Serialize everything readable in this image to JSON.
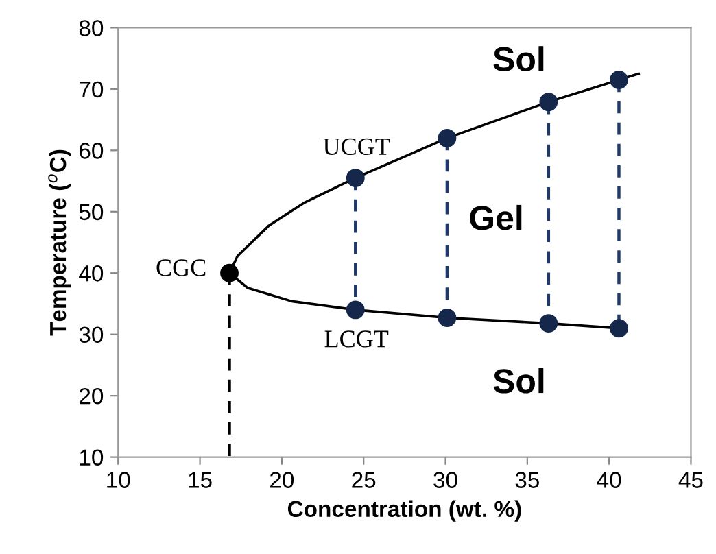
{
  "chart_data": {
    "type": "line",
    "xlabel": "Concentration (wt. %)",
    "ylabel": "Temperature ($^{o}$C)",
    "xlim": [
      10,
      45
    ],
    "xticks": [
      10,
      15,
      20,
      25,
      30,
      35,
      40,
      45
    ],
    "ylim": [
      10,
      80
    ],
    "yticks": [
      10,
      20,
      30,
      40,
      50,
      60,
      70,
      80
    ],
    "grid": false,
    "series": [
      {
        "color": "#000000",
        "marker": "none",
        "line_style": "solid",
        "x": [
          16.8,
          17.3,
          19.2,
          21.4,
          24.5,
          30.1,
          36.3,
          40.6,
          41.8
        ],
        "values": [
          40.0,
          42.8,
          47.7,
          51.5,
          55.5,
          62.0,
          67.9,
          71.5,
          72.5
        ]
      },
      {
        "color": "#000000",
        "marker": "none",
        "line_style": "solid",
        "x": [
          16.8,
          17.9,
          20.6,
          24.5,
          30.1,
          36.3,
          40.6
        ],
        "values": [
          40.0,
          37.6,
          35.4,
          34.0,
          32.7,
          31.8,
          31.0
        ]
      },
      {
        "color": "#000000",
        "marker": "none",
        "line_style": "dashed",
        "x": [
          16.8,
          16.8
        ],
        "values": [
          40.0,
          10
        ]
      },
      {
        "color": "#1f3a68",
        "marker": "none",
        "line_style": "dashed",
        "x": [
          24.5,
          24.5
        ],
        "values": [
          55.5,
          34.0
        ]
      },
      {
        "color": "#1f3a68",
        "marker": "none",
        "line_style": "dashed",
        "x": [
          30.1,
          30.1
        ],
        "values": [
          62.0,
          32.7
        ]
      },
      {
        "color": "#1f3a68",
        "marker": "none",
        "line_style": "dashed",
        "x": [
          36.3,
          36.3
        ],
        "values": [
          67.9,
          31.8
        ]
      },
      {
        "color": "#1f3a68",
        "marker": "none",
        "line_style": "dashed",
        "x": [
          40.6,
          40.6
        ],
        "values": [
          71.5,
          31.0
        ]
      },
      {
        "type": "scatter",
        "color": "#15284b",
        "marker": "circle",
        "x": [
          24.5,
          30.1,
          36.3,
          40.6
        ],
        "values": [
          55.5,
          62.0,
          67.9,
          71.5
        ]
      },
      {
        "type": "scatter",
        "color": "#15284b",
        "marker": "circle",
        "x": [
          24.5,
          30.1,
          36.3,
          40.6
        ],
        "values": [
          34.0,
          32.7,
          31.8,
          31.0
        ]
      },
      {
        "type": "scatter",
        "color": "#000000",
        "marker": "circle",
        "x": [
          16.8
        ],
        "values": [
          40.0
        ]
      }
    ],
    "annotations": [
      "Sol",
      "Gel",
      "Sol",
      "UCGT",
      "LCGT",
      "CGC"
    ]
  }
}
